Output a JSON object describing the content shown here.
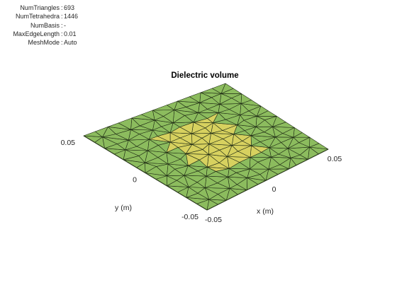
{
  "info": [
    {
      "name": "NumTriangles",
      "value": "693"
    },
    {
      "name": "NumTetrahedra",
      "value": "1446"
    },
    {
      "name": "NumBasis",
      "value": "-"
    },
    {
      "name": "MaxEdgeLength",
      "value": "0.01"
    },
    {
      "name": "MeshMode",
      "value": "Auto"
    }
  ],
  "colors": {
    "substrate": "#8cbc5e",
    "patch": "#d7d15f",
    "edge": "#1e2a14"
  },
  "chart_data": {
    "type": "3d-mesh",
    "title": "Dielectric volume",
    "xlabel": "x (m)",
    "ylabel": "y (m)",
    "xlim": [
      -0.05,
      0.05
    ],
    "ylim": [
      -0.05,
      0.05
    ],
    "xticks": [
      {
        "value": -0.05,
        "label": "-0.05"
      },
      {
        "value": 0,
        "label": "0"
      },
      {
        "value": 0.05,
        "label": "0.05"
      }
    ],
    "yticks": [
      {
        "value": -0.05,
        "label": "-0.05"
      },
      {
        "value": 0,
        "label": "0"
      },
      {
        "value": 0.05,
        "label": "0.05"
      }
    ],
    "patch": {
      "x": [
        -0.02,
        0.02
      ],
      "y": [
        -0.025,
        0.025
      ]
    },
    "grid": false
  }
}
